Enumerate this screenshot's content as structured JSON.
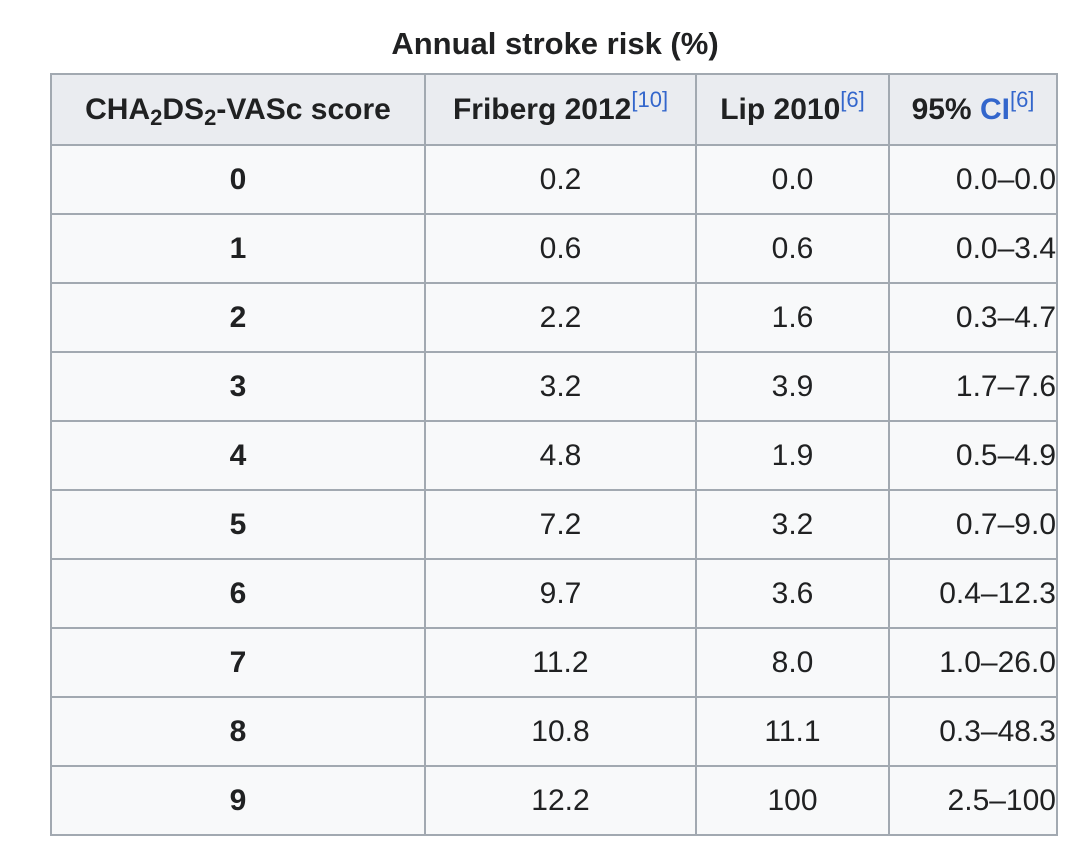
{
  "caption": "Annual stroke risk (%)",
  "header": {
    "score": {
      "pre": "CHA",
      "sub1": "2",
      "mid": "DS",
      "sub2": "2",
      "post": "-VASc score"
    },
    "friberg": {
      "label": "Friberg 2012",
      "ref": "[10]"
    },
    "lip": {
      "label": "Lip 2010",
      "ref": "[6]"
    },
    "ci": {
      "label": "95% ",
      "link": "CI",
      "ref": "[6]"
    }
  },
  "rows": [
    {
      "score": "0",
      "friberg": "0.2",
      "lip": "0.0",
      "ci": "0.0–0.0"
    },
    {
      "score": "1",
      "friberg": "0.6",
      "lip": "0.6",
      "ci": "0.0–3.4"
    },
    {
      "score": "2",
      "friberg": "2.2",
      "lip": "1.6",
      "ci": "0.3–4.7"
    },
    {
      "score": "3",
      "friberg": "3.2",
      "lip": "3.9",
      "ci": "1.7–7.6"
    },
    {
      "score": "4",
      "friberg": "4.8",
      "lip": "1.9",
      "ci": "0.5–4.9"
    },
    {
      "score": "5",
      "friberg": "7.2",
      "lip": "3.2",
      "ci": "0.7–9.0"
    },
    {
      "score": "6",
      "friberg": "9.7",
      "lip": "3.6",
      "ci": "0.4–12.3"
    },
    {
      "score": "7",
      "friberg": "11.2",
      "lip": "8.0",
      "ci": "1.0–26.0"
    },
    {
      "score": "8",
      "friberg": "10.8",
      "lip": "11.1",
      "ci": "0.3–48.3"
    },
    {
      "score": "9",
      "friberg": "12.2",
      "lip": "100",
      "ci": "2.5–100"
    }
  ]
}
